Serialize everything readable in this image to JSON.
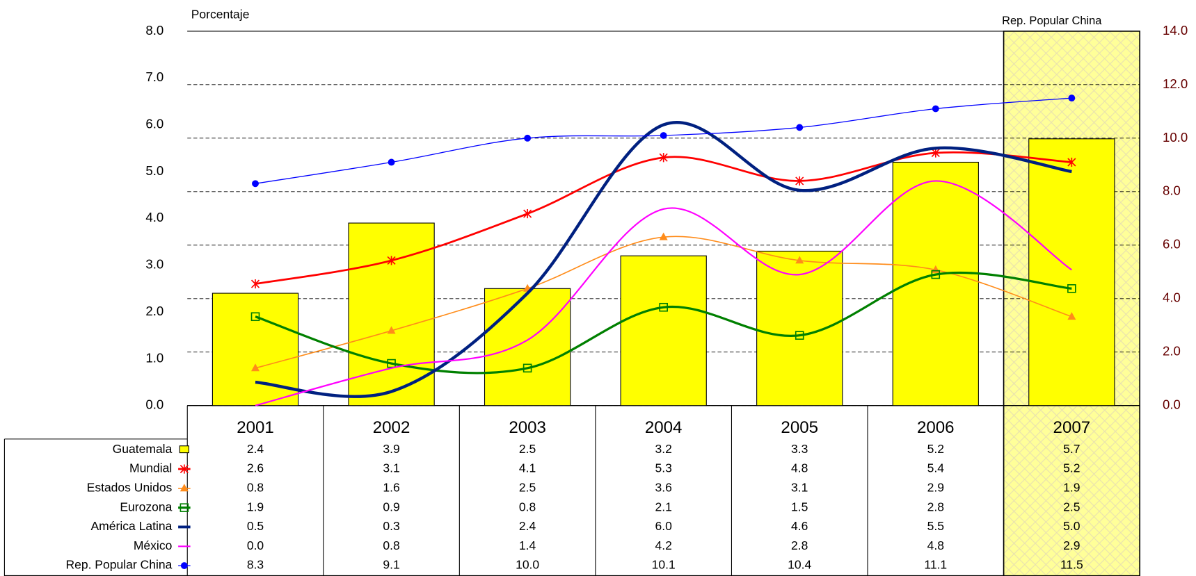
{
  "chart_data": {
    "type": "combo",
    "ylabel": "Porcentaje",
    "annotation": "Rep. Popular China",
    "categories": [
      "2001",
      "2002",
      "2003",
      "2004",
      "2005",
      "2006",
      "2007"
    ],
    "highlight_category": 6,
    "ylim": [
      0,
      8
    ],
    "yticks": [
      {
        "value": 0,
        "label": "0.0"
      },
      {
        "value": 1,
        "label": "1.0"
      },
      {
        "value": 2,
        "label": "2.0"
      },
      {
        "value": 3,
        "label": "3.0"
      },
      {
        "value": 4,
        "label": "4.0"
      },
      {
        "value": 5,
        "label": "5.0"
      },
      {
        "value": 6,
        "label": "6.0"
      },
      {
        "value": 7,
        "label": "7.0"
      },
      {
        "value": 8,
        "label": "8.0"
      }
    ],
    "y2lim": [
      0,
      14
    ],
    "y2ticks": [
      {
        "value": 0,
        "label": "0.0"
      },
      {
        "value": 2,
        "label": "2.0"
      },
      {
        "value": 4,
        "label": "4.0"
      },
      {
        "value": 6,
        "label": "6.0"
      },
      {
        "value": 8,
        "label": "8.0"
      },
      {
        "value": 10,
        "label": "10.0"
      },
      {
        "value": 12,
        "label": "12.0"
      },
      {
        "value": 14,
        "label": "14.0"
      }
    ],
    "grid": "y2",
    "smooth": true,
    "series": [
      {
        "name": "Guatemala",
        "type": "bar",
        "color": "#ffff00",
        "values": [
          2.4,
          3.9,
          2.5,
          3.2,
          3.3,
          5.2,
          5.7
        ]
      },
      {
        "name": "Mundial",
        "type": "line",
        "marker": "star",
        "color": "#ff0000",
        "values": [
          2.6,
          3.1,
          4.1,
          5.3,
          4.8,
          5.4,
          5.2
        ]
      },
      {
        "name": "Estados Unidos",
        "type": "line",
        "marker": "triangle",
        "color": "#ff8c1a",
        "values": [
          0.8,
          1.6,
          2.5,
          3.6,
          3.1,
          2.9,
          1.9
        ]
      },
      {
        "name": "Eurozona",
        "type": "line",
        "marker": "square",
        "color": "#008000",
        "values": [
          1.9,
          0.9,
          0.8,
          2.1,
          1.5,
          2.8,
          2.5
        ]
      },
      {
        "name": "América Latina",
        "type": "line",
        "marker": "none",
        "color": "#002080",
        "values": [
          0.5,
          0.3,
          2.4,
          6.0,
          4.6,
          5.5,
          5.0
        ],
        "value_labels": [
          "0.5",
          "0.3",
          "2.4",
          "6.0",
          "4.6",
          "5.5",
          "5.0"
        ]
      },
      {
        "name": "México",
        "type": "line",
        "marker": "none",
        "color": "#ff00ff",
        "values": [
          0.0,
          0.8,
          1.4,
          4.2,
          2.8,
          4.8,
          2.9
        ],
        "value_labels": [
          "0.0",
          "0.8",
          "1.4",
          "4.2",
          "2.8",
          "4.8",
          "2.9"
        ]
      },
      {
        "name": "Rep. Popular China",
        "type": "line",
        "axis": "y2",
        "marker": "circle",
        "color": "#0000ff",
        "values": [
          8.3,
          9.1,
          10.0,
          10.1,
          10.4,
          11.1,
          11.5
        ],
        "value_labels": [
          "8.3",
          "9.1",
          "10.0",
          "10.1",
          "10.4",
          "11.1",
          "11.5"
        ]
      }
    ]
  }
}
